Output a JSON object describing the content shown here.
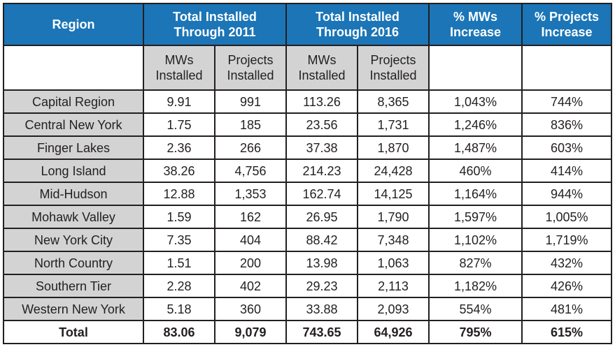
{
  "header": {
    "region": "Region",
    "through_2011": [
      "Total Installed",
      "Through 2011"
    ],
    "through_2016": [
      "Total Installed",
      "Through 2016"
    ],
    "pct_mw": [
      "% MWs",
      "Increase"
    ],
    "pct_projects": [
      "% Projects",
      "Increase"
    ]
  },
  "subheader": {
    "mws_2011": [
      "MWs",
      "Installed"
    ],
    "projects_2011": [
      "Projects",
      "Installed"
    ],
    "mws_2016": [
      "MWs",
      "Installed"
    ],
    "projects_2016": [
      "Projects",
      "Installed"
    ]
  },
  "rows": [
    {
      "region": "Capital Region",
      "mw2011": "9.91",
      "proj2011": "991",
      "mw2016": "113.26",
      "proj2016": "8,365",
      "pct_mw": "1,043%",
      "pct_proj": "744%"
    },
    {
      "region": "Central New York",
      "mw2011": "1.75",
      "proj2011": "185",
      "mw2016": "23.56",
      "proj2016": "1,731",
      "pct_mw": "1,246%",
      "pct_proj": "836%"
    },
    {
      "region": "Finger Lakes",
      "mw2011": "2.36",
      "proj2011": "266",
      "mw2016": "37.38",
      "proj2016": "1,870",
      "pct_mw": "1,487%",
      "pct_proj": "603%"
    },
    {
      "region": "Long Island",
      "mw2011": "38.26",
      "proj2011": "4,756",
      "mw2016": "214.23",
      "proj2016": "24,428",
      "pct_mw": "460%",
      "pct_proj": "414%"
    },
    {
      "region": "Mid-Hudson",
      "mw2011": "12.88",
      "proj2011": "1,353",
      "mw2016": "162.74",
      "proj2016": "14,125",
      "pct_mw": "1,164%",
      "pct_proj": "944%"
    },
    {
      "region": "Mohawk Valley",
      "mw2011": "1.59",
      "proj2011": "162",
      "mw2016": "26.95",
      "proj2016": "1,790",
      "pct_mw": "1,597%",
      "pct_proj": "1,005%"
    },
    {
      "region": "New York City",
      "mw2011": "7.35",
      "proj2011": "404",
      "mw2016": "88.42",
      "proj2016": "7,348",
      "pct_mw": "1,102%",
      "pct_proj": "1,719%"
    },
    {
      "region": "North Country",
      "mw2011": "1.51",
      "proj2011": "200",
      "mw2016": "13.98",
      "proj2016": "1,063",
      "pct_mw": "827%",
      "pct_proj": "432%"
    },
    {
      "region": "Southern Tier",
      "mw2011": "2.28",
      "proj2011": "402",
      "mw2016": "29.23",
      "proj2016": "2,113",
      "pct_mw": "1,182%",
      "pct_proj": "426%"
    },
    {
      "region": "Western New York",
      "mw2011": "5.18",
      "proj2011": "360",
      "mw2016": "33.88",
      "proj2016": "2,093",
      "pct_mw": "554%",
      "pct_proj": "481%"
    }
  ],
  "total": {
    "region": "Total",
    "mw2011": "83.06",
    "proj2011": "9,079",
    "mw2016": "743.65",
    "proj2016": "64,926",
    "pct_mw": "795%",
    "pct_proj": "615%"
  },
  "colors": {
    "header_blue": "#1b75b7",
    "gray_cell": "#d3d3d3",
    "border": "#231f20"
  }
}
